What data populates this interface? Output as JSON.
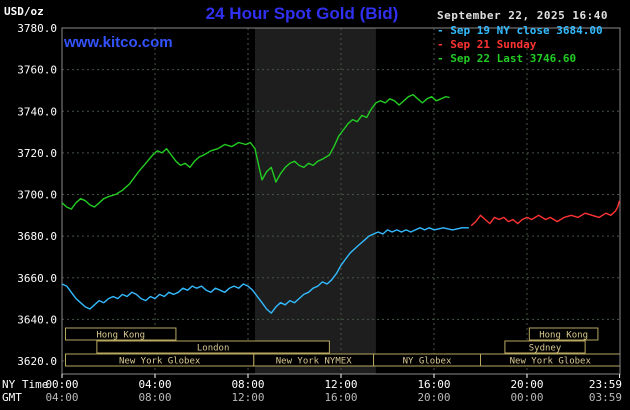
{
  "header": {
    "unit_label": "USD/oz",
    "title": "24 Hour Spot Gold (Bid)",
    "datetime": "September 22, 2025 16:40",
    "watermark": "www.kitco.com"
  },
  "legend": {
    "items": [
      {
        "text": "- Sep 19 NY close 3684.00",
        "color": "#33bbff"
      },
      {
        "text": "- Sep 21 Sunday",
        "color": "#ff3333"
      },
      {
        "text": "- Sep 22 Last 3746.60",
        "color": "#22cc22"
      }
    ]
  },
  "colors": {
    "background": "#000000",
    "title_blue": "#3030f0",
    "watermark_blue": "#3353ff",
    "datetime_text": "#e0e0e0",
    "grid": "#445444",
    "frame": "#8a8a8a",
    "axis_text": "#ffffff",
    "gmt_text": "#b8b8b8",
    "session_border": "#b8a860",
    "session_text": "#d8c890",
    "band": "#1e1e1e"
  },
  "axes": {
    "row1_label": "NY Time",
    "row2_label": "GMT",
    "y_ticks": [
      {
        "value": 3780,
        "label": "3780.0"
      },
      {
        "value": 3760,
        "label": "3760.0"
      },
      {
        "value": 3740,
        "label": "3740.0"
      },
      {
        "value": 3720,
        "label": "3720.0"
      },
      {
        "value": 3700,
        "label": "3700.0"
      },
      {
        "value": 3680,
        "label": "3680.0"
      },
      {
        "value": 3660,
        "label": "3660.0"
      },
      {
        "value": 3640,
        "label": "3640.0"
      },
      {
        "value": 3620,
        "label": "3620.0"
      }
    ],
    "x_ticks": [
      {
        "hour": 0,
        "ny": "00:00",
        "gmt": "04:00"
      },
      {
        "hour": 4,
        "ny": "04:00",
        "gmt": "08:00"
      },
      {
        "hour": 8,
        "ny": "08:00",
        "gmt": "12:00"
      },
      {
        "hour": 12,
        "ny": "12:00",
        "gmt": "16:00"
      },
      {
        "hour": 16,
        "ny": "16:00",
        "gmt": "20:00"
      },
      {
        "hour": 20,
        "ny": "20:00",
        "gmt": "00:00"
      },
      {
        "hour": 23.983,
        "ny": "23:59",
        "gmt": "03:59"
      }
    ]
  },
  "market_sessions": [
    {
      "label": "Hong Kong",
      "row": 0,
      "start_hour": 0.15,
      "end_hour": 4.9
    },
    {
      "label": "Hong Kong",
      "row": 0,
      "start_hour": 20.1,
      "end_hour": 23.05
    },
    {
      "label": "London",
      "row": 1,
      "start_hour": 1.5,
      "end_hour": 11.5
    },
    {
      "label": "Sydney",
      "row": 1,
      "start_hour": 19.05,
      "end_hour": 22.5
    },
    {
      "label": "New York Globex",
      "row": 2,
      "start_hour": 0.15,
      "end_hour": 8.25
    },
    {
      "label": "New York NYMEX",
      "row": 2,
      "start_hour": 8.25,
      "end_hour": 13.4
    },
    {
      "label": "NY Globex",
      "row": 2,
      "start_hour": 13.4,
      "end_hour": 18.0
    },
    {
      "label": "New York Globex",
      "row": 2,
      "start_hour": 18.0,
      "end_hour": 24.0
    }
  ],
  "chart_data": {
    "type": "line",
    "title": "24 Hour Spot Gold (Bid)",
    "xlabel": "NY Time",
    "ylabel": "USD/oz",
    "xlim": [
      0,
      24
    ],
    "ylim": [
      3614,
      3780
    ],
    "grid": true,
    "x_gridline_hours": [
      4,
      8,
      12,
      16,
      20
    ],
    "highlight_band": {
      "start_hour": 8.3,
      "end_hour": 13.5
    },
    "series": [
      {
        "name": "Sep 19 NY close",
        "color": "#33bbff",
        "points": [
          [
            0,
            3657
          ],
          [
            0.2,
            3656
          ],
          [
            0.4,
            3653
          ],
          [
            0.6,
            3650
          ],
          [
            0.8,
            3648
          ],
          [
            1,
            3646
          ],
          [
            1.2,
            3645
          ],
          [
            1.4,
            3647
          ],
          [
            1.6,
            3649
          ],
          [
            1.8,
            3648
          ],
          [
            2,
            3650
          ],
          [
            2.2,
            3651
          ],
          [
            2.4,
            3650
          ],
          [
            2.6,
            3652
          ],
          [
            2.8,
            3651
          ],
          [
            3,
            3653
          ],
          [
            3.2,
            3652
          ],
          [
            3.4,
            3650
          ],
          [
            3.6,
            3649
          ],
          [
            3.8,
            3651
          ],
          [
            4,
            3650
          ],
          [
            4.2,
            3652
          ],
          [
            4.4,
            3651
          ],
          [
            4.6,
            3653
          ],
          [
            4.8,
            3652
          ],
          [
            5,
            3653
          ],
          [
            5.2,
            3655
          ],
          [
            5.4,
            3654
          ],
          [
            5.6,
            3656
          ],
          [
            5.8,
            3655
          ],
          [
            6,
            3656
          ],
          [
            6.2,
            3654
          ],
          [
            6.4,
            3653
          ],
          [
            6.6,
            3655
          ],
          [
            6.8,
            3654
          ],
          [
            7,
            3653
          ],
          [
            7.2,
            3655
          ],
          [
            7.4,
            3656
          ],
          [
            7.6,
            3655
          ],
          [
            7.8,
            3657
          ],
          [
            8,
            3656
          ],
          [
            8.2,
            3654
          ],
          [
            8.4,
            3651
          ],
          [
            8.6,
            3648
          ],
          [
            8.8,
            3645
          ],
          [
            9,
            3643
          ],
          [
            9.2,
            3646
          ],
          [
            9.4,
            3648
          ],
          [
            9.6,
            3647
          ],
          [
            9.8,
            3649
          ],
          [
            10,
            3648
          ],
          [
            10.2,
            3650
          ],
          [
            10.4,
            3652
          ],
          [
            10.6,
            3653
          ],
          [
            10.8,
            3655
          ],
          [
            11,
            3656
          ],
          [
            11.2,
            3658
          ],
          [
            11.4,
            3657
          ],
          [
            11.6,
            3659
          ],
          [
            11.8,
            3662
          ],
          [
            12,
            3666
          ],
          [
            12.2,
            3669
          ],
          [
            12.4,
            3672
          ],
          [
            12.6,
            3674
          ],
          [
            12.8,
            3676
          ],
          [
            13,
            3678
          ],
          [
            13.2,
            3680
          ],
          [
            13.4,
            3681
          ],
          [
            13.6,
            3682
          ],
          [
            13.8,
            3681
          ],
          [
            14,
            3683
          ],
          [
            14.2,
            3682
          ],
          [
            14.4,
            3683
          ],
          [
            14.6,
            3682
          ],
          [
            14.8,
            3683
          ],
          [
            15,
            3682
          ],
          [
            15.2,
            3683
          ],
          [
            15.4,
            3684
          ],
          [
            15.6,
            3683
          ],
          [
            15.8,
            3684
          ],
          [
            16,
            3683
          ],
          [
            16.4,
            3684
          ],
          [
            16.8,
            3683
          ],
          [
            17.2,
            3684
          ],
          [
            17.5,
            3684
          ]
        ]
      },
      {
        "name": "Sep 21 Sunday",
        "color": "#ff3333",
        "points": [
          [
            17.6,
            3685
          ],
          [
            17.8,
            3687
          ],
          [
            18,
            3690
          ],
          [
            18.2,
            3688
          ],
          [
            18.4,
            3686
          ],
          [
            18.6,
            3689
          ],
          [
            18.8,
            3688
          ],
          [
            19,
            3689
          ],
          [
            19.2,
            3687
          ],
          [
            19.4,
            3688
          ],
          [
            19.6,
            3686
          ],
          [
            19.8,
            3688
          ],
          [
            20,
            3689
          ],
          [
            20.2,
            3688
          ],
          [
            20.5,
            3690
          ],
          [
            20.8,
            3688
          ],
          [
            21,
            3689
          ],
          [
            21.3,
            3687
          ],
          [
            21.6,
            3689
          ],
          [
            21.9,
            3690
          ],
          [
            22.2,
            3689
          ],
          [
            22.5,
            3691
          ],
          [
            22.8,
            3690
          ],
          [
            23.1,
            3689
          ],
          [
            23.4,
            3691
          ],
          [
            23.6,
            3690
          ],
          [
            23.8,
            3692
          ],
          [
            23.9,
            3694
          ],
          [
            23.98,
            3697
          ]
        ]
      },
      {
        "name": "Sep 22 Last",
        "color": "#22cc22",
        "points": [
          [
            0,
            3696
          ],
          [
            0.2,
            3694
          ],
          [
            0.4,
            3693
          ],
          [
            0.6,
            3696
          ],
          [
            0.8,
            3698
          ],
          [
            1,
            3697
          ],
          [
            1.2,
            3695
          ],
          [
            1.4,
            3694
          ],
          [
            1.6,
            3696
          ],
          [
            1.8,
            3698
          ],
          [
            2,
            3699
          ],
          [
            2.3,
            3700
          ],
          [
            2.6,
            3702
          ],
          [
            2.9,
            3705
          ],
          [
            3.1,
            3708
          ],
          [
            3.3,
            3711
          ],
          [
            3.6,
            3715
          ],
          [
            3.9,
            3719
          ],
          [
            4.1,
            3721
          ],
          [
            4.3,
            3720
          ],
          [
            4.5,
            3722
          ],
          [
            4.7,
            3719
          ],
          [
            4.9,
            3716
          ],
          [
            5.1,
            3714
          ],
          [
            5.3,
            3715
          ],
          [
            5.5,
            3713
          ],
          [
            5.7,
            3716
          ],
          [
            5.9,
            3718
          ],
          [
            6.1,
            3719
          ],
          [
            6.4,
            3721
          ],
          [
            6.7,
            3722
          ],
          [
            7,
            3724
          ],
          [
            7.3,
            3723
          ],
          [
            7.6,
            3725
          ],
          [
            7.9,
            3724
          ],
          [
            8.1,
            3725
          ],
          [
            8.3,
            3722
          ],
          [
            8.5,
            3712
          ],
          [
            8.6,
            3707
          ],
          [
            8.8,
            3711
          ],
          [
            9,
            3713
          ],
          [
            9.2,
            3706
          ],
          [
            9.4,
            3710
          ],
          [
            9.6,
            3713
          ],
          [
            9.8,
            3715
          ],
          [
            10,
            3716
          ],
          [
            10.2,
            3714
          ],
          [
            10.4,
            3713
          ],
          [
            10.6,
            3715
          ],
          [
            10.8,
            3714
          ],
          [
            11,
            3716
          ],
          [
            11.2,
            3717
          ],
          [
            11.5,
            3719
          ],
          [
            11.7,
            3723
          ],
          [
            11.9,
            3728
          ],
          [
            12.1,
            3731
          ],
          [
            12.3,
            3734
          ],
          [
            12.5,
            3736
          ],
          [
            12.7,
            3735
          ],
          [
            12.9,
            3738
          ],
          [
            13.1,
            3737
          ],
          [
            13.3,
            3741
          ],
          [
            13.5,
            3744
          ],
          [
            13.7,
            3745
          ],
          [
            13.9,
            3744
          ],
          [
            14.1,
            3746
          ],
          [
            14.3,
            3745
          ],
          [
            14.5,
            3743
          ],
          [
            14.7,
            3745
          ],
          [
            14.9,
            3747
          ],
          [
            15.1,
            3748
          ],
          [
            15.3,
            3746
          ],
          [
            15.5,
            3744
          ],
          [
            15.7,
            3746
          ],
          [
            15.9,
            3747
          ],
          [
            16.1,
            3745
          ],
          [
            16.3,
            3746
          ],
          [
            16.5,
            3747
          ],
          [
            16.67,
            3746.6
          ]
        ]
      }
    ]
  }
}
